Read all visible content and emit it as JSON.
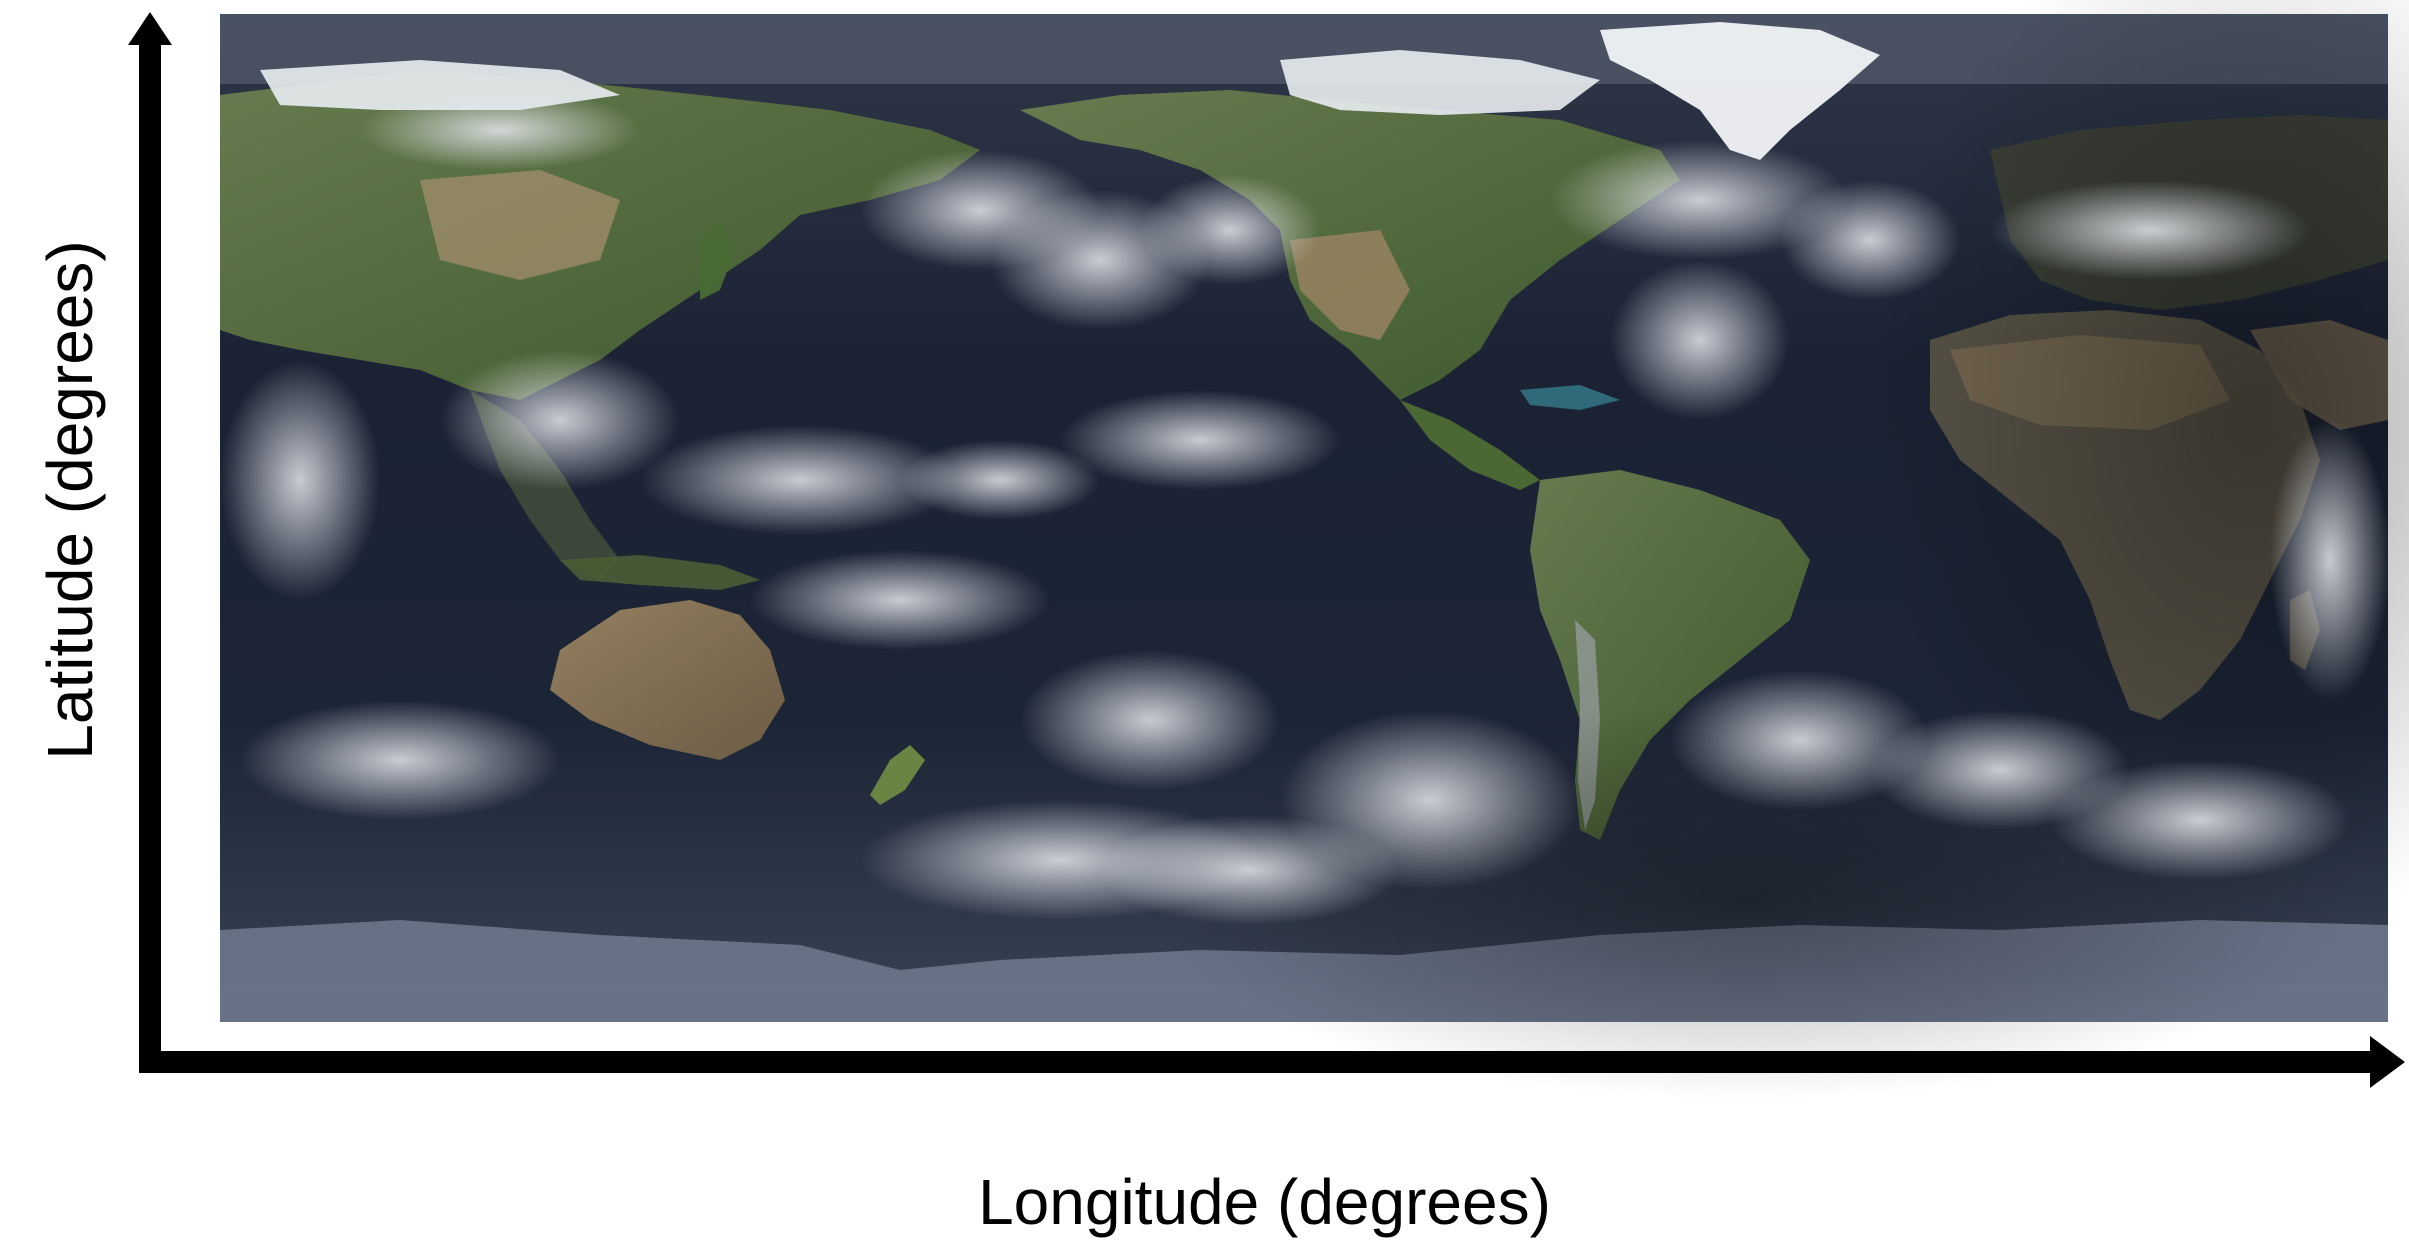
{
  "figure": {
    "x_axis_label": "Longitude (degrees)",
    "y_axis_label": "Latitude (degrees)"
  },
  "map": {
    "projection": "equirectangular",
    "content": "world satellite imagery with clouds",
    "colors": {
      "ocean": "#1c2536",
      "land_green": "#4e6b34",
      "land_desert": "#8a7556",
      "land_dark": "#3c3f36",
      "ice": "#e9edf2",
      "antarctica": "#6a7489",
      "cloud": "#dfe3ea",
      "axis": "#000000"
    }
  }
}
